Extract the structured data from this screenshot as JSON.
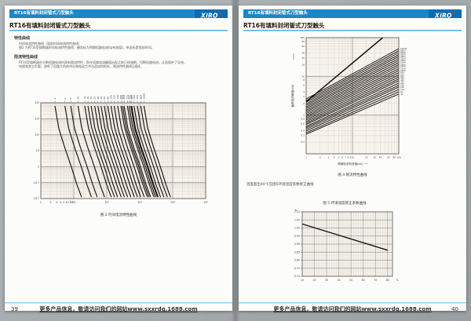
{
  "pages": {
    "left": {
      "page_number": "39",
      "header_bar": "RT16有填料封闭管式刀型触头",
      "logo": "XiRO",
      "logo_mark": "®",
      "title": "RT16有填料封闭管式刀型触头",
      "sections": [
        {
          "heading": "特性曲线",
          "lines": [
            "时间电流特性曲线（弧前时间电流特性曲线）",
            "图2 为RT16型熔断器时间电流特性曲线，横坐标为预期短路电流(Ip有效值)，纵坐标是弧前时间。"
          ]
        },
        {
          "heading": "限流特性曲线",
          "lines": [
            "RT16型熔断器在分断短路电流时具有限流特性，即在短路电流峰值出现之前已经熔断，切断短路电流，从而保护了导线、",
            "电缆和其它负载。避免了回路大的热冲击和电动力冲击造成的损失，限流特性曲线见图4。"
          ]
        }
      ],
      "footer_text": "更多产品信息，敬请访问我们的网站www.sxxrdq.1688.com"
    },
    "right": {
      "page_number": "40",
      "header_bar": "RT16有填料封闭管式刀型触头",
      "logo": "XiRO",
      "logo_mark": "®",
      "title": "RT16有填料封闭管式刀型触头",
      "note": "温度超出40℃见图5环境温度系数修正曲线",
      "footer_text": "更多产品信息，敬请访问我们的网站www.sxxrdq.1688.com"
    }
  },
  "colors": {
    "bar_blue": "#1b86c8",
    "logo_blue": "#0b6cb5",
    "accent_line": "#4aa6d9",
    "footer_line": "#8ecdf0",
    "logo_red": "#e6392a",
    "grid_major": "#9e968d",
    "grid_minor": "#d8d2ca",
    "curve": "#17130f"
  },
  "chart_data": [
    {
      "id": "fig2",
      "type": "line",
      "scale": "log-log",
      "caption": "图 2 时间电流特性曲线",
      "x_range": [
        1,
        100000
      ],
      "y_range": [
        0.01,
        10000
      ],
      "x_tick_labels": [
        [
          1,
          "1"
        ],
        [
          2,
          "2"
        ],
        [
          3,
          "3"
        ],
        [
          4,
          "4"
        ],
        [
          5,
          "5"
        ],
        [
          6,
          "6"
        ],
        [
          7,
          "7"
        ],
        [
          8,
          "8"
        ],
        [
          9,
          "9"
        ],
        [
          10,
          "10"
        ],
        [
          100,
          "10²"
        ],
        [
          1000,
          "10³"
        ],
        [
          10000,
          "10⁴"
        ],
        [
          100000,
          "10⁵"
        ]
      ],
      "y_tick_labels": [
        [
          10000,
          "10⁴"
        ],
        [
          1000,
          "10³"
        ],
        [
          100,
          "10²"
        ],
        [
          10,
          "10"
        ],
        [
          1,
          "1"
        ],
        [
          0.1,
          "10⁻¹"
        ],
        [
          0.01,
          "10⁻²"
        ]
      ],
      "curve_ratings_A": [
        2,
        4,
        6,
        10,
        16,
        20,
        25,
        32,
        40,
        50,
        63,
        80,
        100,
        125,
        160,
        200,
        224,
        250,
        315,
        355,
        400,
        425,
        500,
        630,
        800,
        1000
      ],
      "curve_anchor_multipliers": [
        [
          1.35,
          6000
        ],
        [
          1.75,
          250
        ],
        [
          2.6,
          18
        ],
        [
          4.2,
          1.0
        ],
        [
          6.3,
          0.07
        ],
        [
          8.5,
          0.013
        ]
      ]
    },
    {
      "id": "fig4",
      "type": "line",
      "scale": "log-log",
      "caption": "图 4 限流特性曲线",
      "xlabel": "预期电流有效值(kA)",
      "ylabel": "截断电流峰值(kA)",
      "x_range": [
        1,
        100
      ],
      "y_range": [
        0.1,
        100
      ],
      "x_tick_labels": [
        [
          1,
          "1"
        ],
        [
          2,
          "2"
        ],
        [
          3,
          "3"
        ],
        [
          4,
          "4"
        ],
        [
          5,
          "5"
        ],
        [
          6,
          "6"
        ],
        [
          7,
          "7"
        ],
        [
          8,
          "8"
        ],
        [
          9,
          "9"
        ],
        [
          10,
          "10"
        ],
        [
          20,
          "20"
        ],
        [
          30,
          "30"
        ],
        [
          40,
          "40"
        ],
        [
          60,
          "60"
        ],
        [
          80,
          "80"
        ],
        [
          100,
          "100"
        ]
      ],
      "y_tick_labels": [
        [
          100,
          "100"
        ],
        [
          80,
          "80"
        ],
        [
          60,
          "60"
        ],
        [
          40,
          "40"
        ],
        [
          30,
          "30"
        ],
        [
          20,
          "20"
        ],
        [
          10,
          "10"
        ],
        [
          8,
          "8"
        ],
        [
          6,
          "6"
        ],
        [
          4,
          "4"
        ],
        [
          3,
          "3"
        ],
        [
          2,
          "2"
        ],
        [
          1,
          "1"
        ],
        [
          0.8,
          "0.8"
        ],
        [
          0.6,
          "0.6"
        ],
        [
          0.4,
          "0.4"
        ],
        [
          0.3,
          "0.3"
        ],
        [
          0.2,
          "0.2"
        ]
      ],
      "limit_line": {
        "x": [
          1,
          45
        ],
        "y": [
          2.2,
          100
        ]
      },
      "lines": [
        {
          "label": "1000A",
          "y_start": 2.6,
          "y_end": 52.0
        },
        {
          "label": "800A",
          "y_start": 2.36,
          "y_end": 46.2
        },
        {
          "label": "630A",
          "y_start": 2.15,
          "y_end": 41.2
        },
        {
          "label": "500A",
          "y_start": 1.95,
          "y_end": 36.6
        },
        {
          "label": "400A",
          "y_start": 1.78,
          "y_end": 32.7
        },
        {
          "label": "315A",
          "y_start": 1.61,
          "y_end": 28.9
        },
        {
          "label": "250A",
          "y_start": 1.47,
          "y_end": 25.8
        },
        {
          "label": "224A",
          "y_start": 1.33,
          "y_end": 22.8
        },
        {
          "label": "200A",
          "y_start": 1.21,
          "y_end": 20.2
        },
        {
          "label": "160A",
          "y_start": 1.1,
          "y_end": 18.0
        },
        {
          "label": "125A",
          "y_start": 1.0,
          "y_end": 15.9
        },
        {
          "label": "100A",
          "y_start": 0.91,
          "y_end": 14.1
        },
        {
          "label": "80A",
          "y_start": 0.83,
          "y_end": 12.5
        },
        {
          "label": "63A",
          "y_start": 0.75,
          "y_end": 11.0
        },
        {
          "label": "50A",
          "y_start": 0.68,
          "y_end": 9.7
        },
        {
          "label": "40A",
          "y_start": 0.62,
          "y_end": 8.6
        },
        {
          "label": "32A",
          "y_start": 0.57,
          "y_end": 7.7
        },
        {
          "label": "25A",
          "y_start": 0.51,
          "y_end": 6.7
        },
        {
          "label": "20A",
          "y_start": 0.47,
          "y_end": 5.9
        },
        {
          "label": "16A",
          "y_start": 0.43,
          "y_end": 5.3
        },
        {
          "label": "10A",
          "y_start": 0.39,
          "y_end": 4.6
        },
        {
          "label": "6A",
          "y_start": 0.35,
          "y_end": 4.0
        },
        {
          "label": "4A",
          "y_start": 0.32,
          "y_end": 3.5
        }
      ]
    },
    {
      "id": "fig5",
      "type": "line",
      "scale": "linear",
      "title": "图 5 环境温度修正系数曲线",
      "ylabel": "K",
      "x_unit": "℃",
      "x_ticks": [
        10,
        20,
        30,
        40,
        50,
        60,
        70,
        80
      ],
      "y_ticks": [
        "1.10",
        "1.05",
        "1.00",
        "0.95",
        "0.90",
        "0.85",
        "0.80",
        "0.75",
        "0.70"
      ],
      "x_range": [
        10,
        84
      ],
      "y_range": [
        0.7,
        1.1
      ],
      "line_points": [
        [
          10,
          1.025
        ],
        [
          80,
          0.862
        ]
      ]
    }
  ]
}
